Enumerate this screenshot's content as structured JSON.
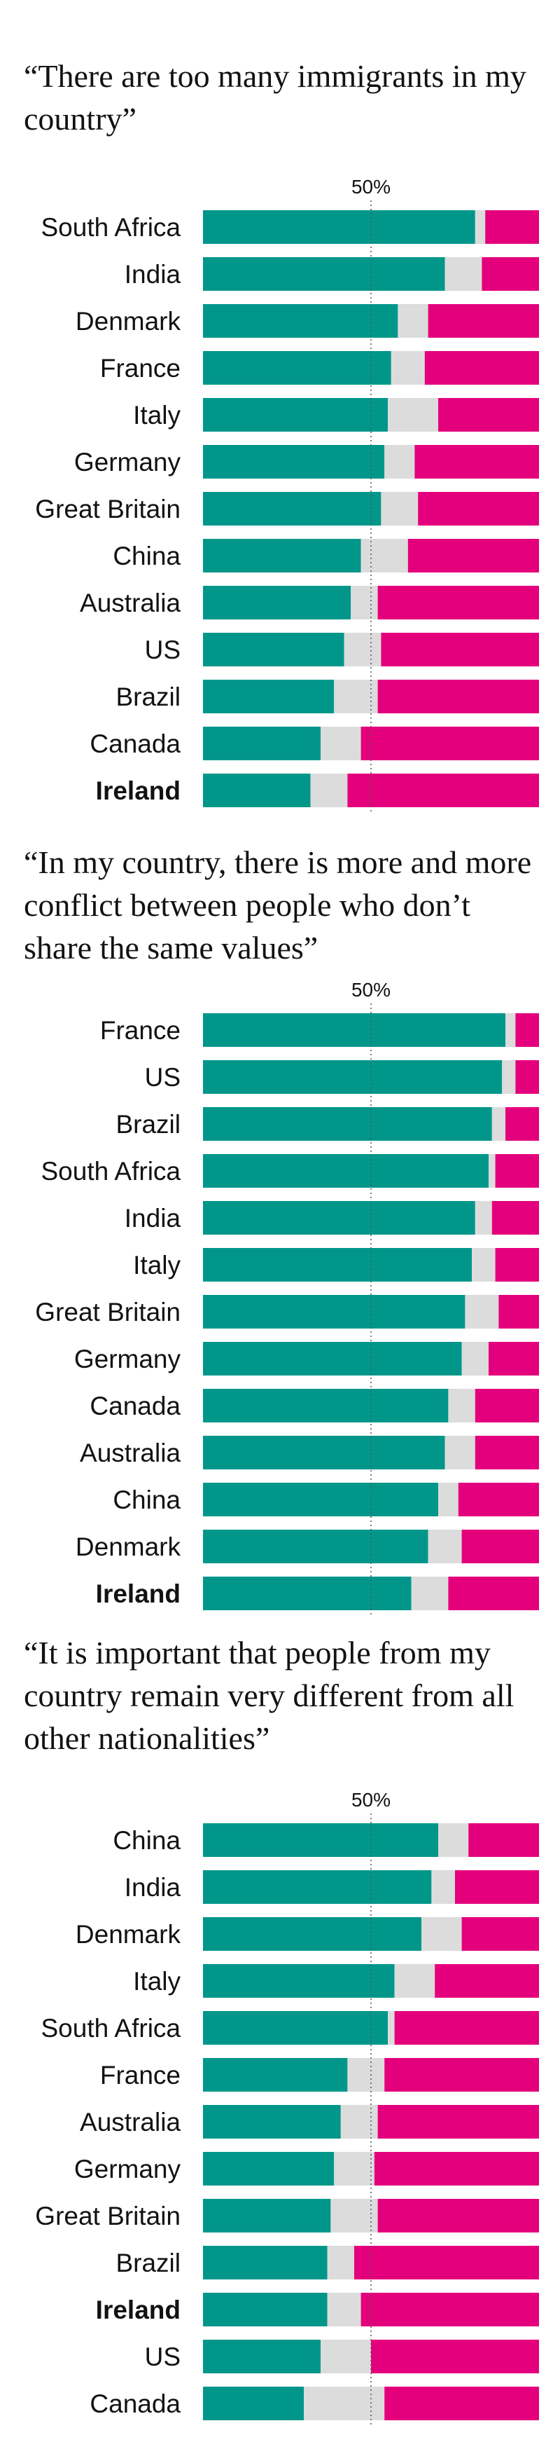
{
  "colors": {
    "agree": "#00978a",
    "neutral": "#dcdcdc",
    "disagree": "#e4007c",
    "midline": "#555555"
  },
  "midline_label": "50%",
  "chart_data": [
    {
      "type": "bar",
      "stacked": true,
      "orientation": "horizontal",
      "title": "“There are too many immigrants in my country”",
      "xlim": [
        0,
        100
      ],
      "highlight": "Ireland",
      "categories": [
        "South Africa",
        "India",
        "Denmark",
        "France",
        "Italy",
        "Germany",
        "Great Britain",
        "China",
        "Australia",
        "US",
        "Brazil",
        "Canada",
        "Ireland"
      ],
      "series": [
        {
          "values": [
            81,
            72,
            58,
            56,
            55,
            54,
            53,
            47,
            44,
            42,
            39,
            35,
            32
          ]
        },
        {
          "values": [
            3,
            11,
            9,
            10,
            15,
            9,
            11,
            14,
            8,
            11,
            13,
            12,
            11
          ]
        },
        {
          "values": [
            16,
            17,
            33,
            34,
            30,
            37,
            36,
            39,
            48,
            47,
            48,
            53,
            57
          ]
        }
      ]
    },
    {
      "type": "bar",
      "stacked": true,
      "orientation": "horizontal",
      "title": "“In my country, there is more and more conflict between people who don’t share the same values”",
      "xlim": [
        0,
        100
      ],
      "highlight": "Ireland",
      "categories": [
        "France",
        "US",
        "Brazil",
        "South Africa",
        "India",
        "Italy",
        "Great Britain",
        "Germany",
        "Canada",
        "Australia",
        "China",
        "Denmark",
        "Ireland"
      ],
      "series": [
        {
          "values": [
            90,
            89,
            86,
            85,
            81,
            80,
            78,
            77,
            73,
            72,
            70,
            67,
            62
          ]
        },
        {
          "values": [
            3,
            4,
            4,
            2,
            5,
            7,
            10,
            8,
            8,
            9,
            6,
            10,
            11
          ]
        },
        {
          "values": [
            7,
            7,
            10,
            13,
            14,
            13,
            12,
            15,
            19,
            19,
            24,
            23,
            27
          ]
        }
      ]
    },
    {
      "type": "bar",
      "stacked": true,
      "orientation": "horizontal",
      "title": "“It is important that people from my country remain very different from all other nationalities”",
      "xlim": [
        0,
        100
      ],
      "highlight": "Ireland",
      "categories": [
        "China",
        "India",
        "Denmark",
        "Italy",
        "South Africa",
        "France",
        "Australia",
        "Germany",
        "Great Britain",
        "Brazil",
        "Ireland",
        "US",
        "Canada"
      ],
      "series": [
        {
          "values": [
            70,
            68,
            65,
            57,
            55,
            43,
            41,
            39,
            38,
            37,
            37,
            35,
            30
          ]
        },
        {
          "values": [
            9,
            7,
            12,
            12,
            2,
            11,
            11,
            12,
            14,
            8,
            10,
            15,
            24
          ]
        },
        {
          "values": [
            21,
            25,
            23,
            31,
            43,
            46,
            48,
            49,
            48,
            55,
            53,
            50,
            46
          ]
        }
      ]
    }
  ]
}
